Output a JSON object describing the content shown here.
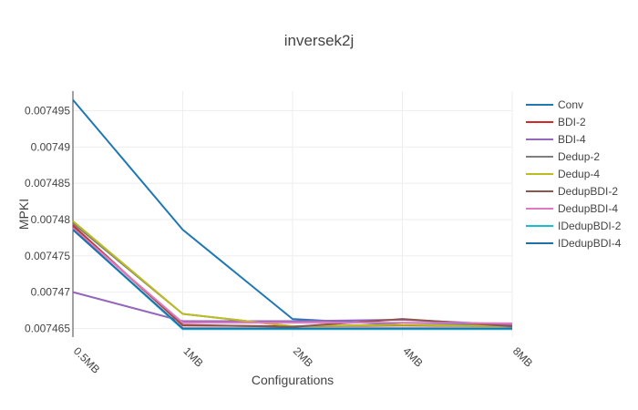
{
  "chart_data": {
    "type": "line",
    "title": "inversek2j",
    "xlabel": "Configurations",
    "ylabel": "MPKI",
    "categories": [
      "0.5MB",
      "1MB",
      "2MB",
      "4MB",
      "8MB"
    ],
    "y_ticks": [
      0.007465,
      0.00747,
      0.007475,
      0.00748,
      0.007485,
      0.00749,
      0.007495
    ],
    "y_tick_labels": [
      "0.007465",
      "0.00747",
      "0.007475",
      "0.00748",
      "0.007485",
      "0.00749",
      "0.007495"
    ],
    "ylim": [
      0.0074638,
      0.0074977
    ],
    "grid": true,
    "legend_position": "right",
    "series": [
      {
        "name": "Conv",
        "color": "#1f77b4",
        "values": [
          0.0074965,
          0.0074786,
          0.0074663,
          0.0074655,
          0.0074655
        ]
      },
      {
        "name": "BDI-2",
        "color": "#d62728",
        "values": [
          0.0074792,
          0.0074654,
          0.0074653,
          0.0074654,
          0.0074653
        ]
      },
      {
        "name": "BDI-4",
        "color": "#9467bd",
        "values": [
          0.00747,
          0.007466,
          0.007466,
          0.0074662,
          0.0074655
        ]
      },
      {
        "name": "Dedup-2",
        "color": "#7f7f7f",
        "values": [
          0.0074795,
          0.007467,
          0.0074653,
          0.0074655,
          0.0074653
        ]
      },
      {
        "name": "Dedup-4",
        "color": "#bcbd22",
        "values": [
          0.0074798,
          0.007467,
          0.0074653,
          0.0074655,
          0.0074653
        ]
      },
      {
        "name": "DedupBDI-2",
        "color": "#8c564b",
        "values": [
          0.007479,
          0.0074655,
          0.0074652,
          0.0074663,
          0.0074653
        ]
      },
      {
        "name": "DedupBDI-4",
        "color": "#e377c2",
        "values": [
          0.0074788,
          0.0074658,
          0.0074658,
          0.0074658,
          0.0074657
        ]
      },
      {
        "name": "IDedupBDI-2",
        "color": "#17becf",
        "values": [
          0.0074786,
          0.0074649,
          0.0074649,
          0.0074649,
          0.0074649
        ]
      },
      {
        "name": "IDedupBDI-4",
        "color": "#1f6fa8",
        "values": [
          0.0074786,
          0.007465,
          0.007465,
          0.007465,
          0.007465
        ]
      }
    ]
  }
}
